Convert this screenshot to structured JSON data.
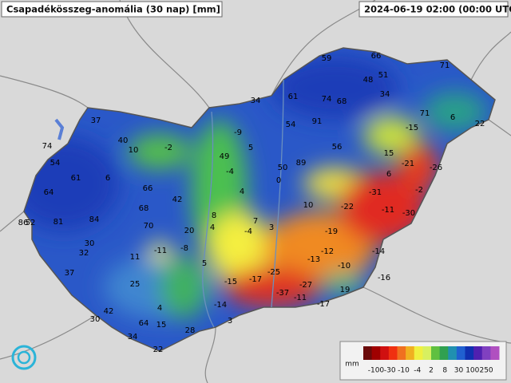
{
  "header": {
    "title": "Csapadékösszeg-anomália (30 nap) [mm]",
    "timestamp": "2024-06-19 02:00 (00:00 UTC)"
  },
  "map": {
    "labels": [
      "59",
      "66",
      "71",
      "48",
      "51",
      "34",
      "61",
      "74",
      "68",
      "34",
      "71",
      "6",
      "22",
      "37",
      "54",
      "91",
      "-15",
      "-9",
      "74",
      "40",
      "-2",
      "10",
      "5",
      "56",
      "15",
      "54",
      "49",
      "89",
      "-21",
      "-26",
      "61",
      "6",
      "-4",
      "50",
      "0",
      "6",
      "66",
      "4",
      "-31",
      "-2",
      "64",
      "42",
      "10",
      "-22",
      "-11",
      "-30",
      "68",
      "8",
      "7",
      "86",
      "52",
      "81",
      "84",
      "70",
      "4",
      "-4",
      "3",
      "-19",
      "20",
      "30",
      "32",
      "-11",
      "-8",
      "-12",
      "-14",
      "11",
      "-13",
      "-10",
      "5",
      "37",
      "-25",
      "-16",
      "-15",
      "-17",
      "-27",
      "25",
      "19",
      "-37",
      "-11",
      "-14",
      "-17",
      "4",
      "42",
      "30",
      "64",
      "15",
      "3",
      "28",
      "34",
      "22"
    ]
  },
  "legend": {
    "unit": "mm",
    "ticks": [
      "-100",
      "-30",
      "-10",
      "-4",
      "2",
      "8",
      "30",
      "100",
      "250"
    ]
  }
}
